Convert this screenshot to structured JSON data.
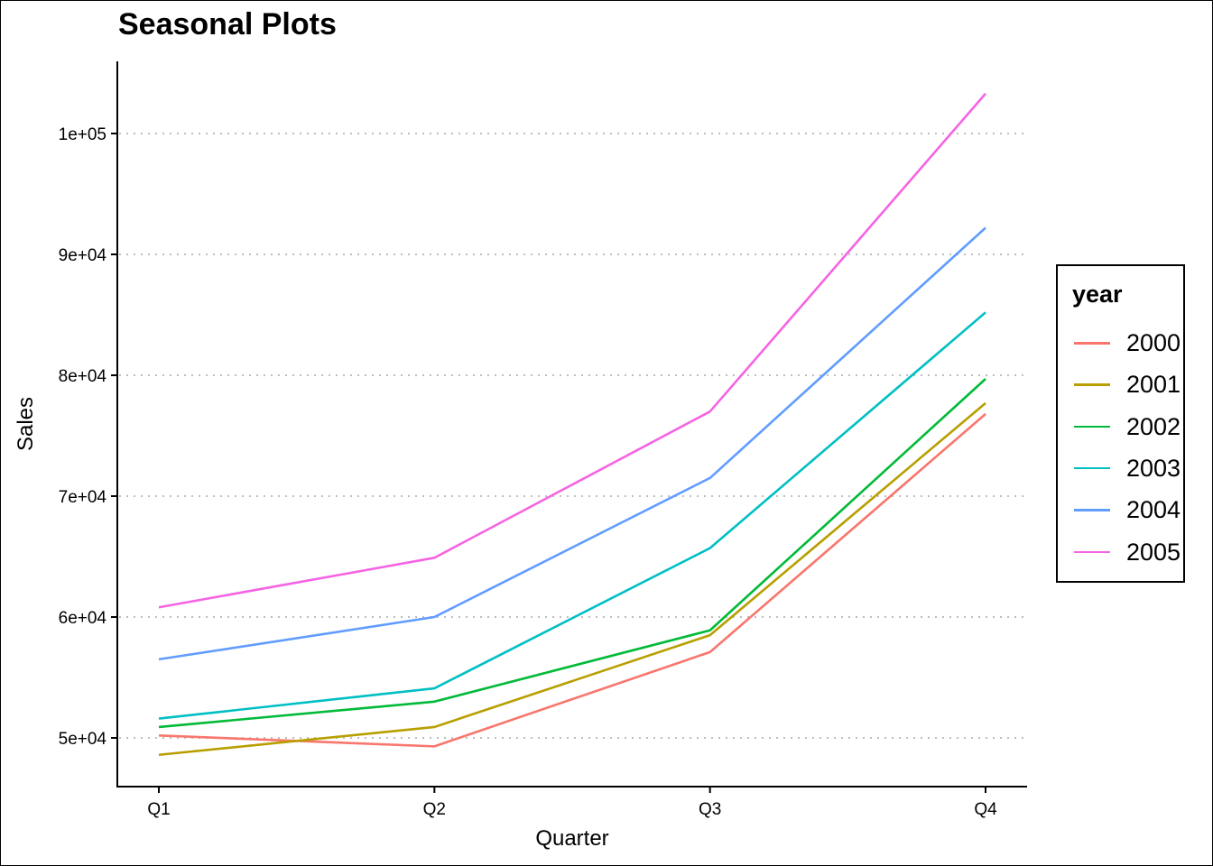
{
  "chart_data": {
    "type": "line",
    "title": "Seasonal Plots",
    "xlabel": "Quarter",
    "ylabel": "Sales",
    "categories": [
      "Q1",
      "Q2",
      "Q3",
      "Q4"
    ],
    "y_ticks": [
      {
        "value": 50000,
        "label": "5e+04"
      },
      {
        "value": 60000,
        "label": "6e+04"
      },
      {
        "value": 70000,
        "label": "7e+04"
      },
      {
        "value": 80000,
        "label": "8e+04"
      },
      {
        "value": 90000,
        "label": "9e+04"
      },
      {
        "value": 100000,
        "label": "1e+05"
      }
    ],
    "ylim": [
      46000,
      106000
    ],
    "grid": "horizontal dotted",
    "legend_title": "year",
    "legend_position": "right",
    "series": [
      {
        "name": "2000",
        "color": "#F8766D",
        "values": [
          50200,
          49300,
          57100,
          76800
        ]
      },
      {
        "name": "2001",
        "color": "#B79F00",
        "values": [
          48600,
          50900,
          58500,
          77700
        ]
      },
      {
        "name": "2002",
        "color": "#00BA38",
        "values": [
          50900,
          53000,
          58900,
          79700
        ]
      },
      {
        "name": "2003",
        "color": "#00BFC4",
        "values": [
          51600,
          54100,
          65700,
          85200
        ]
      },
      {
        "name": "2004",
        "color": "#619CFF",
        "values": [
          56500,
          60000,
          71500,
          92200
        ]
      },
      {
        "name": "2005",
        "color": "#F564E3",
        "values": [
          60800,
          64900,
          77000,
          103300
        ]
      }
    ]
  }
}
